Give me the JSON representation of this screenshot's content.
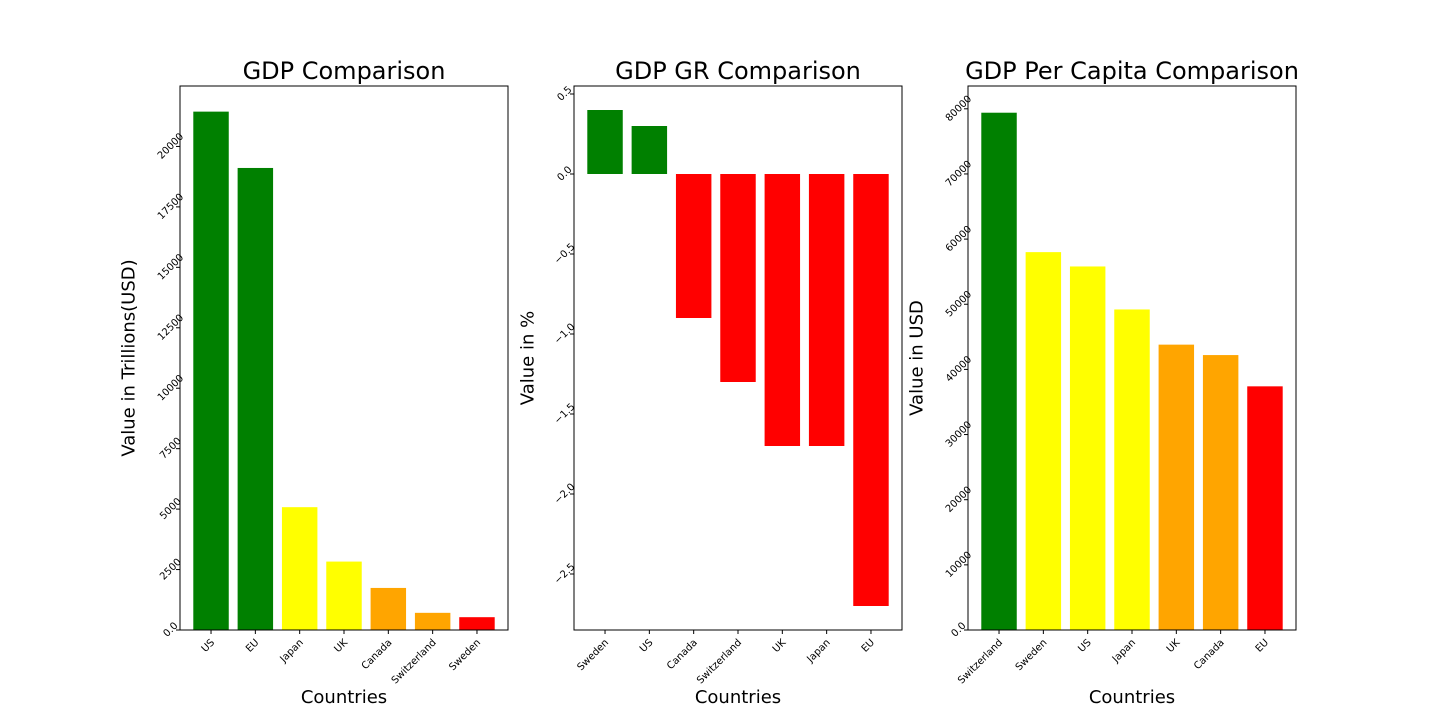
{
  "figure": {
    "background": "#ffffff"
  },
  "chart_data": [
    {
      "type": "bar",
      "title": "GDP Comparison",
      "xlabel": "Countries",
      "ylabel": "Value in Trillions(USD)",
      "categories": [
        "US",
        "EU",
        "Japan",
        "UK",
        "Canada",
        "Switzerland",
        "Sweden"
      ],
      "values": [
        21440,
        19110,
        5080,
        2830,
        1740,
        710,
        530
      ],
      "colors": [
        "#008000",
        "#008000",
        "#ffff00",
        "#ffff00",
        "#ffa500",
        "#ffa500",
        "#ff0000"
      ],
      "ylim": [
        0,
        22500
      ],
      "yticks": [
        0,
        2500,
        5000,
        7500,
        10000,
        12500,
        15000,
        17500,
        20000
      ],
      "grid": false
    },
    {
      "type": "bar",
      "title": "GDP GR Comparison",
      "xlabel": "Countries",
      "ylabel": "Value in %",
      "categories": [
        "Sweden",
        "US",
        "Canada",
        "Switzerland",
        "UK",
        "Japan",
        "EU"
      ],
      "values": [
        0.4,
        0.3,
        -0.9,
        -1.3,
        -1.7,
        -1.7,
        -2.7
      ],
      "colors": [
        "#008000",
        "#008000",
        "#ff0000",
        "#ff0000",
        "#ff0000",
        "#ff0000",
        "#ff0000"
      ],
      "ylim": [
        -2.85,
        0.55
      ],
      "yticks": [
        -2.5,
        -2.0,
        -1.5,
        -1.0,
        -0.5,
        0.0,
        0.5
      ],
      "grid": false
    },
    {
      "type": "bar",
      "title": "GDP Per Capita Comparison",
      "xlabel": "Countries",
      "ylabel": "Value in USD",
      "categories": [
        "Switzerland",
        "Sweden",
        "US",
        "Japan",
        "UK",
        "Canada",
        "EU"
      ],
      "values": [
        79400,
        58000,
        55800,
        49200,
        43800,
        42200,
        37400
      ],
      "colors": [
        "#008000",
        "#ffff00",
        "#ffff00",
        "#ffff00",
        "#ffa500",
        "#ffa500",
        "#ff0000"
      ],
      "ylim": [
        0,
        83500
      ],
      "yticks": [
        0,
        10000,
        20000,
        30000,
        40000,
        50000,
        60000,
        70000,
        80000
      ],
      "grid": false
    }
  ]
}
